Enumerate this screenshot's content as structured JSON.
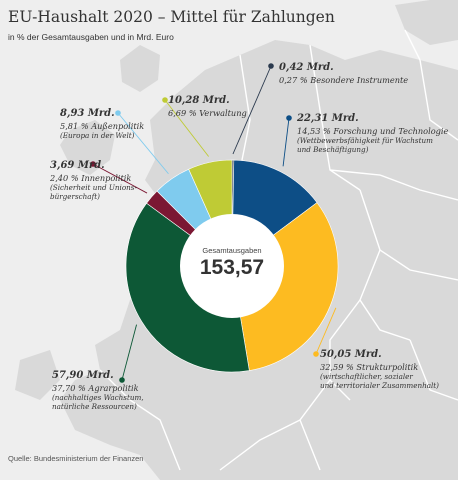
{
  "title": "EU-Haushalt 2020 – Mittel für Zahlungen",
  "subtitle": "in % der Gesamtausgaben und in Mrd. Euro",
  "source": "Quelle: Bundesministerium der Finanzen",
  "center": {
    "caption": "Gesamtausgaben",
    "value": "153,57"
  },
  "chart_data": {
    "type": "pie",
    "title": "EU-Haushalt 2020 – Mittel für Zahlungen",
    "unit": "Mrd. Euro",
    "total": 153.57,
    "slices": [
      {
        "key": "besondere",
        "amount_label": "0,42 Mrd.",
        "value": 0.42,
        "percent": 0.27,
        "percent_label": "0,27 % Besondere Instrumente",
        "note": "",
        "color": "#2b3a4e"
      },
      {
        "key": "forschung",
        "amount_label": "22,31 Mrd.",
        "value": 22.31,
        "percent": 14.53,
        "percent_label": "14,53 % Forschung und Technologie",
        "note": "(Wettbewerbsfähigkeit für Wachstum\nund Beschäftigung)",
        "color": "#0d4e86"
      },
      {
        "key": "struktur",
        "amount_label": "50,05 Mrd.",
        "value": 50.05,
        "percent": 32.59,
        "percent_label": "32,59 % Strukturpolitik",
        "note": "(wirtschaftlicher, sozialer\nund territorialer Zusammenhalt)",
        "color": "#fdbb21"
      },
      {
        "key": "agrar",
        "amount_label": "57,90 Mrd.",
        "value": 57.9,
        "percent": 37.7,
        "percent_label": "37,70 % Agrarpolitik",
        "note": "(nachhaltiges Wachstum,\nnatürliche Ressourcen)",
        "color": "#0d5836"
      },
      {
        "key": "innen",
        "amount_label": "3,69 Mrd.",
        "value": 3.69,
        "percent": 2.4,
        "percent_label": "2,40 % Innenpolitik",
        "note": "(Sicherheit und Unions-\nbürgerschaft)",
        "color": "#7b1733"
      },
      {
        "key": "aussen",
        "amount_label": "8,93 Mrd.",
        "value": 8.93,
        "percent": 5.81,
        "percent_label": "5,81 % Außenpolitik",
        "note": "(Europa in der Welt)",
        "color": "#7fcbee"
      },
      {
        "key": "verwaltung",
        "amount_label": "10,28 Mrd.",
        "value": 10.28,
        "percent": 6.69,
        "percent_label": "6,69 % Verwaltung",
        "note": "",
        "color": "#bfcb35"
      }
    ]
  }
}
